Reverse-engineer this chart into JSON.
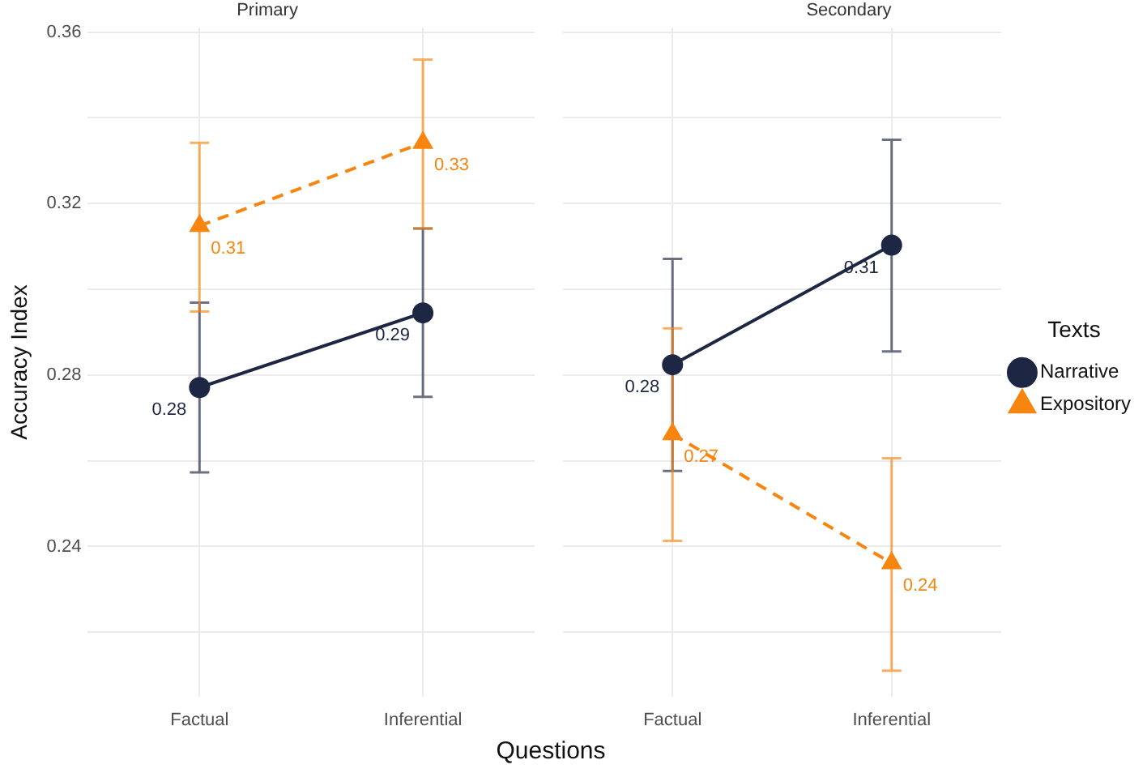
{
  "chart_data": [
    {
      "type": "line",
      "title": "Primary",
      "xlabel": "Questions",
      "ylabel": "Accuracy Index",
      "categories": [
        "Factual",
        "Inferential"
      ],
      "series": [
        {
          "color": "#1d2642",
          "marker": "circle",
          "line_style": "solid",
          "values": [
            0.2771,
            0.2945
          ],
          "errors": [
            [
              0.2573,
              0.2969
            ],
            [
              0.2749,
              0.3142
            ]
          ],
          "value_labels": [
            "0.28",
            "0.29"
          ]
        },
        {
          "color": "#f7850f",
          "marker": "triangle",
          "line_style": "dashed",
          "values": [
            0.3148,
            0.3342
          ],
          "errors": [
            [
              0.2948,
              0.3342
            ],
            [
              0.3142,
              0.3536
            ]
          ],
          "value_labels": [
            "0.31",
            "0.33"
          ]
        }
      ],
      "ylim": [
        0.205,
        0.361
      ],
      "yticks": [
        {
          "value": 0.22,
          "label": null
        },
        0.24,
        {
          "value": 0.26,
          "label": null
        },
        0.28,
        {
          "value": 0.3,
          "label": null
        },
        0.32,
        {
          "value": 0.34,
          "label": null
        },
        0.36
      ],
      "grid": true,
      "tick_labels": true
    },
    {
      "type": "line",
      "title": "Secondary",
      "legend_title": "Texts",
      "categories": [
        "Factual",
        "Inferential"
      ],
      "series": [
        {
          "name": "Narrative",
          "color": "#1d2642",
          "marker": "circle",
          "line_style": "solid",
          "values": [
            0.2824,
            0.3103
          ],
          "errors": [
            [
              0.2576,
              0.3071
            ],
            [
              0.2855,
              0.3349
            ]
          ],
          "value_labels": [
            "0.28",
            "0.31"
          ]
        },
        {
          "name": "Expository",
          "color": "#f7850f",
          "marker": "triangle",
          "line_style": "dashed",
          "values": [
            0.2662,
            0.2361
          ],
          "errors": [
            [
              0.2413,
              0.2909
            ],
            [
              0.211,
              0.2606
            ]
          ],
          "value_labels": [
            "0.27",
            "0.24"
          ]
        }
      ],
      "ylim": [
        0.205,
        0.361
      ],
      "yticks": [
        {
          "value": 0.22,
          "label": null
        },
        0.24,
        {
          "value": 0.26,
          "label": null
        },
        0.28,
        {
          "value": 0.3,
          "label": null
        },
        0.32,
        {
          "value": 0.34,
          "label": null
        },
        0.36
      ],
      "grid": true,
      "tick_labels": "x",
      "legend": "right"
    }
  ]
}
